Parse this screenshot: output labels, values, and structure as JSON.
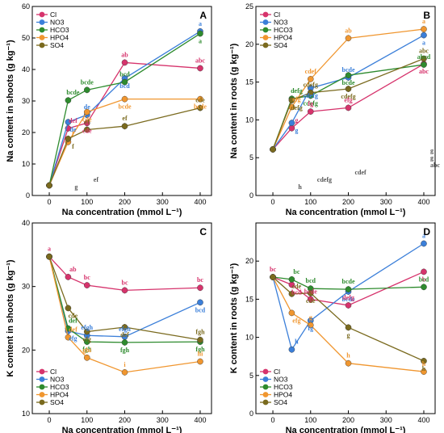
{
  "colors": {
    "Cl": "#d6336c",
    "NO3": "#3b7fd9",
    "HCO3": "#2e8b2e",
    "HPO4": "#f0962f",
    "SO4": "#7a6a1e"
  },
  "chart_data": [
    {
      "type": "line",
      "panel": "A",
      "ylabel": "Na content in shoots (g kg⁻¹)",
      "xlabel": "Na concentration (mmol L⁻¹)",
      "x": [
        0,
        50,
        100,
        200,
        400
      ],
      "xlim": [
        -45,
        430
      ],
      "ylim": [
        0,
        60
      ],
      "yticks": [
        0,
        10,
        20,
        30,
        40,
        50,
        60
      ],
      "xticks": [
        0,
        100,
        200,
        300,
        400
      ],
      "legend": "top-left",
      "series": [
        {
          "name": "Cl",
          "values": [
            3.2,
            21.3,
            23.0,
            42.2,
            40.4
          ],
          "labels": [
            "",
            "def",
            "cde",
            "ab",
            "abc"
          ]
        },
        {
          "name": "NO3",
          "values": [
            3.2,
            23.3,
            25.6,
            37.2,
            52.1
          ],
          "labels": [
            "",
            "de",
            "de",
            "bcd",
            "a"
          ]
        },
        {
          "name": "HCO3",
          "values": [
            3.2,
            30.2,
            33.5,
            36.0,
            51.4
          ],
          "labels": [
            "",
            "bcde",
            "bcde",
            "bcd",
            "a"
          ]
        },
        {
          "name": "HPO4",
          "values": [
            3.2,
            17.0,
            26.5,
            30.6,
            30.6
          ],
          "labels": [
            "",
            "f",
            "cde",
            "bcde",
            "bcde"
          ]
        },
        {
          "name": "SO4",
          "values": [
            3.2,
            18.0,
            20.9,
            22.0,
            27.8
          ],
          "labels": [
            "",
            "f",
            "ef",
            "ef",
            "cde"
          ]
        }
      ],
      "extra_labels": [
        "g",
        "ef"
      ]
    },
    {
      "type": "line",
      "panel": "B",
      "ylabel": "Na content in roots (g kg⁻¹)",
      "xlabel": "Na concentration (mmol L⁻¹)",
      "x": [
        0,
        50,
        100,
        200,
        400
      ],
      "xlim": [
        -45,
        430
      ],
      "ylim": [
        0,
        25
      ],
      "yticks": [
        0,
        5,
        10,
        15,
        20,
        25
      ],
      "xticks": [
        0,
        100,
        200,
        300,
        400
      ],
      "legend": "top-left",
      "series": [
        {
          "name": "Cl",
          "values": [
            6.1,
            8.9,
            11.1,
            11.6,
            17.4
          ],
          "labels": [
            "",
            "g",
            "fg",
            "efg",
            "abc"
          ]
        },
        {
          "name": "NO3",
          "values": [
            6.1,
            9.6,
            14.2,
            15.6,
            21.2
          ],
          "labels": [
            "",
            "g",
            "cdefg",
            "bcde",
            "a"
          ]
        },
        {
          "name": "HCO3",
          "values": [
            6.1,
            12.8,
            13.2,
            15.9,
            17.3
          ],
          "labels": [
            "",
            "defg",
            "cdefg",
            "bcde",
            "abcd"
          ]
        },
        {
          "name": "HPO4",
          "values": [
            6.1,
            11.7,
            15.4,
            20.8,
            22.0
          ],
          "labels": [
            "",
            "efg",
            "cdef",
            "ab",
            "a"
          ]
        },
        {
          "name": "SO4",
          "values": [
            6.1,
            12.6,
            13.6,
            14.1,
            18.1
          ],
          "labels": [
            "",
            "defg",
            "cdefg",
            "cdefg",
            "abc"
          ]
        }
      ],
      "extra_labels": [
        "h",
        "cdefg",
        "cdef",
        "abc",
        "g",
        "g"
      ]
    },
    {
      "type": "line",
      "panel": "C",
      "ylabel": "K content in shoots (g kg⁻¹)",
      "xlabel": "Na concentration (mmol L⁻¹)",
      "x": [
        0,
        50,
        100,
        200,
        400
      ],
      "xlim": [
        -45,
        430
      ],
      "ylim": [
        10,
        40
      ],
      "yticks": [
        10,
        20,
        30,
        40
      ],
      "xticks": [
        0,
        100,
        200,
        300,
        400
      ],
      "legend": "bottom-left",
      "series": [
        {
          "name": "Cl",
          "values": [
            34.7,
            31.5,
            30.2,
            29.4,
            29.8
          ],
          "labels": [
            "a",
            "ab",
            "bc",
            "bc",
            "bc"
          ]
        },
        {
          "name": "NO3",
          "values": [
            34.7,
            23.0,
            22.3,
            22.1,
            27.5
          ],
          "labels": [
            "",
            "efg",
            "efgh",
            "efgh",
            "bcd"
          ]
        },
        {
          "name": "HCO3",
          "values": [
            34.7,
            23.4,
            21.3,
            21.2,
            21.3
          ],
          "labels": [
            "",
            "def",
            "fgh",
            "fgh",
            "fgh"
          ]
        },
        {
          "name": "HPO4",
          "values": [
            34.7,
            22.0,
            18.8,
            16.5,
            18.2
          ],
          "labels": [
            "",
            "def",
            "ghi",
            "i",
            "hi"
          ]
        },
        {
          "name": "SO4",
          "values": [
            34.7,
            26.6,
            22.9,
            23.6,
            21.6
          ],
          "labels": [
            "",
            "cde",
            "efg",
            "def",
            "fgh"
          ]
        }
      ]
    },
    {
      "type": "line",
      "panel": "D",
      "ylabel": "K content in roots (g kg⁻¹)",
      "xlabel": "Na concentration (mmol L⁻¹)",
      "x": [
        0,
        50,
        100,
        200,
        400
      ],
      "xlim": [
        -45,
        430
      ],
      "ylim": [
        0,
        25
      ],
      "yticks": [
        0,
        5,
        10,
        15,
        20
      ],
      "xticks": [
        0,
        100,
        200,
        300,
        400
      ],
      "legend": "bottom-left",
      "series": [
        {
          "name": "Cl",
          "values": [
            17.9,
            16.9,
            15.0,
            14.2,
            18.6
          ],
          "labels": [
            "bc",
            "bcd",
            "bcde",
            "defg",
            "b"
          ]
        },
        {
          "name": "NO3",
          "values": [
            17.9,
            8.4,
            12.2,
            16.0,
            22.3
          ],
          "labels": [
            "",
            "h",
            "fg",
            "bcde",
            "a"
          ]
        },
        {
          "name": "HCO3",
          "values": [
            17.9,
            17.6,
            16.4,
            16.3,
            16.6
          ],
          "labels": [
            "",
            "bc",
            "bcd",
            "bcde",
            "bcd"
          ]
        },
        {
          "name": "HPO4",
          "values": [
            17.9,
            13.2,
            11.6,
            6.6,
            5.5
          ],
          "labels": [
            "",
            "efg",
            "g",
            "h",
            "h"
          ]
        },
        {
          "name": "SO4",
          "values": [
            17.9,
            15.7,
            15.8,
            11.3,
            6.9
          ],
          "labels": [
            "",
            "cde",
            "cde",
            "g",
            "h"
          ]
        }
      ]
    }
  ]
}
